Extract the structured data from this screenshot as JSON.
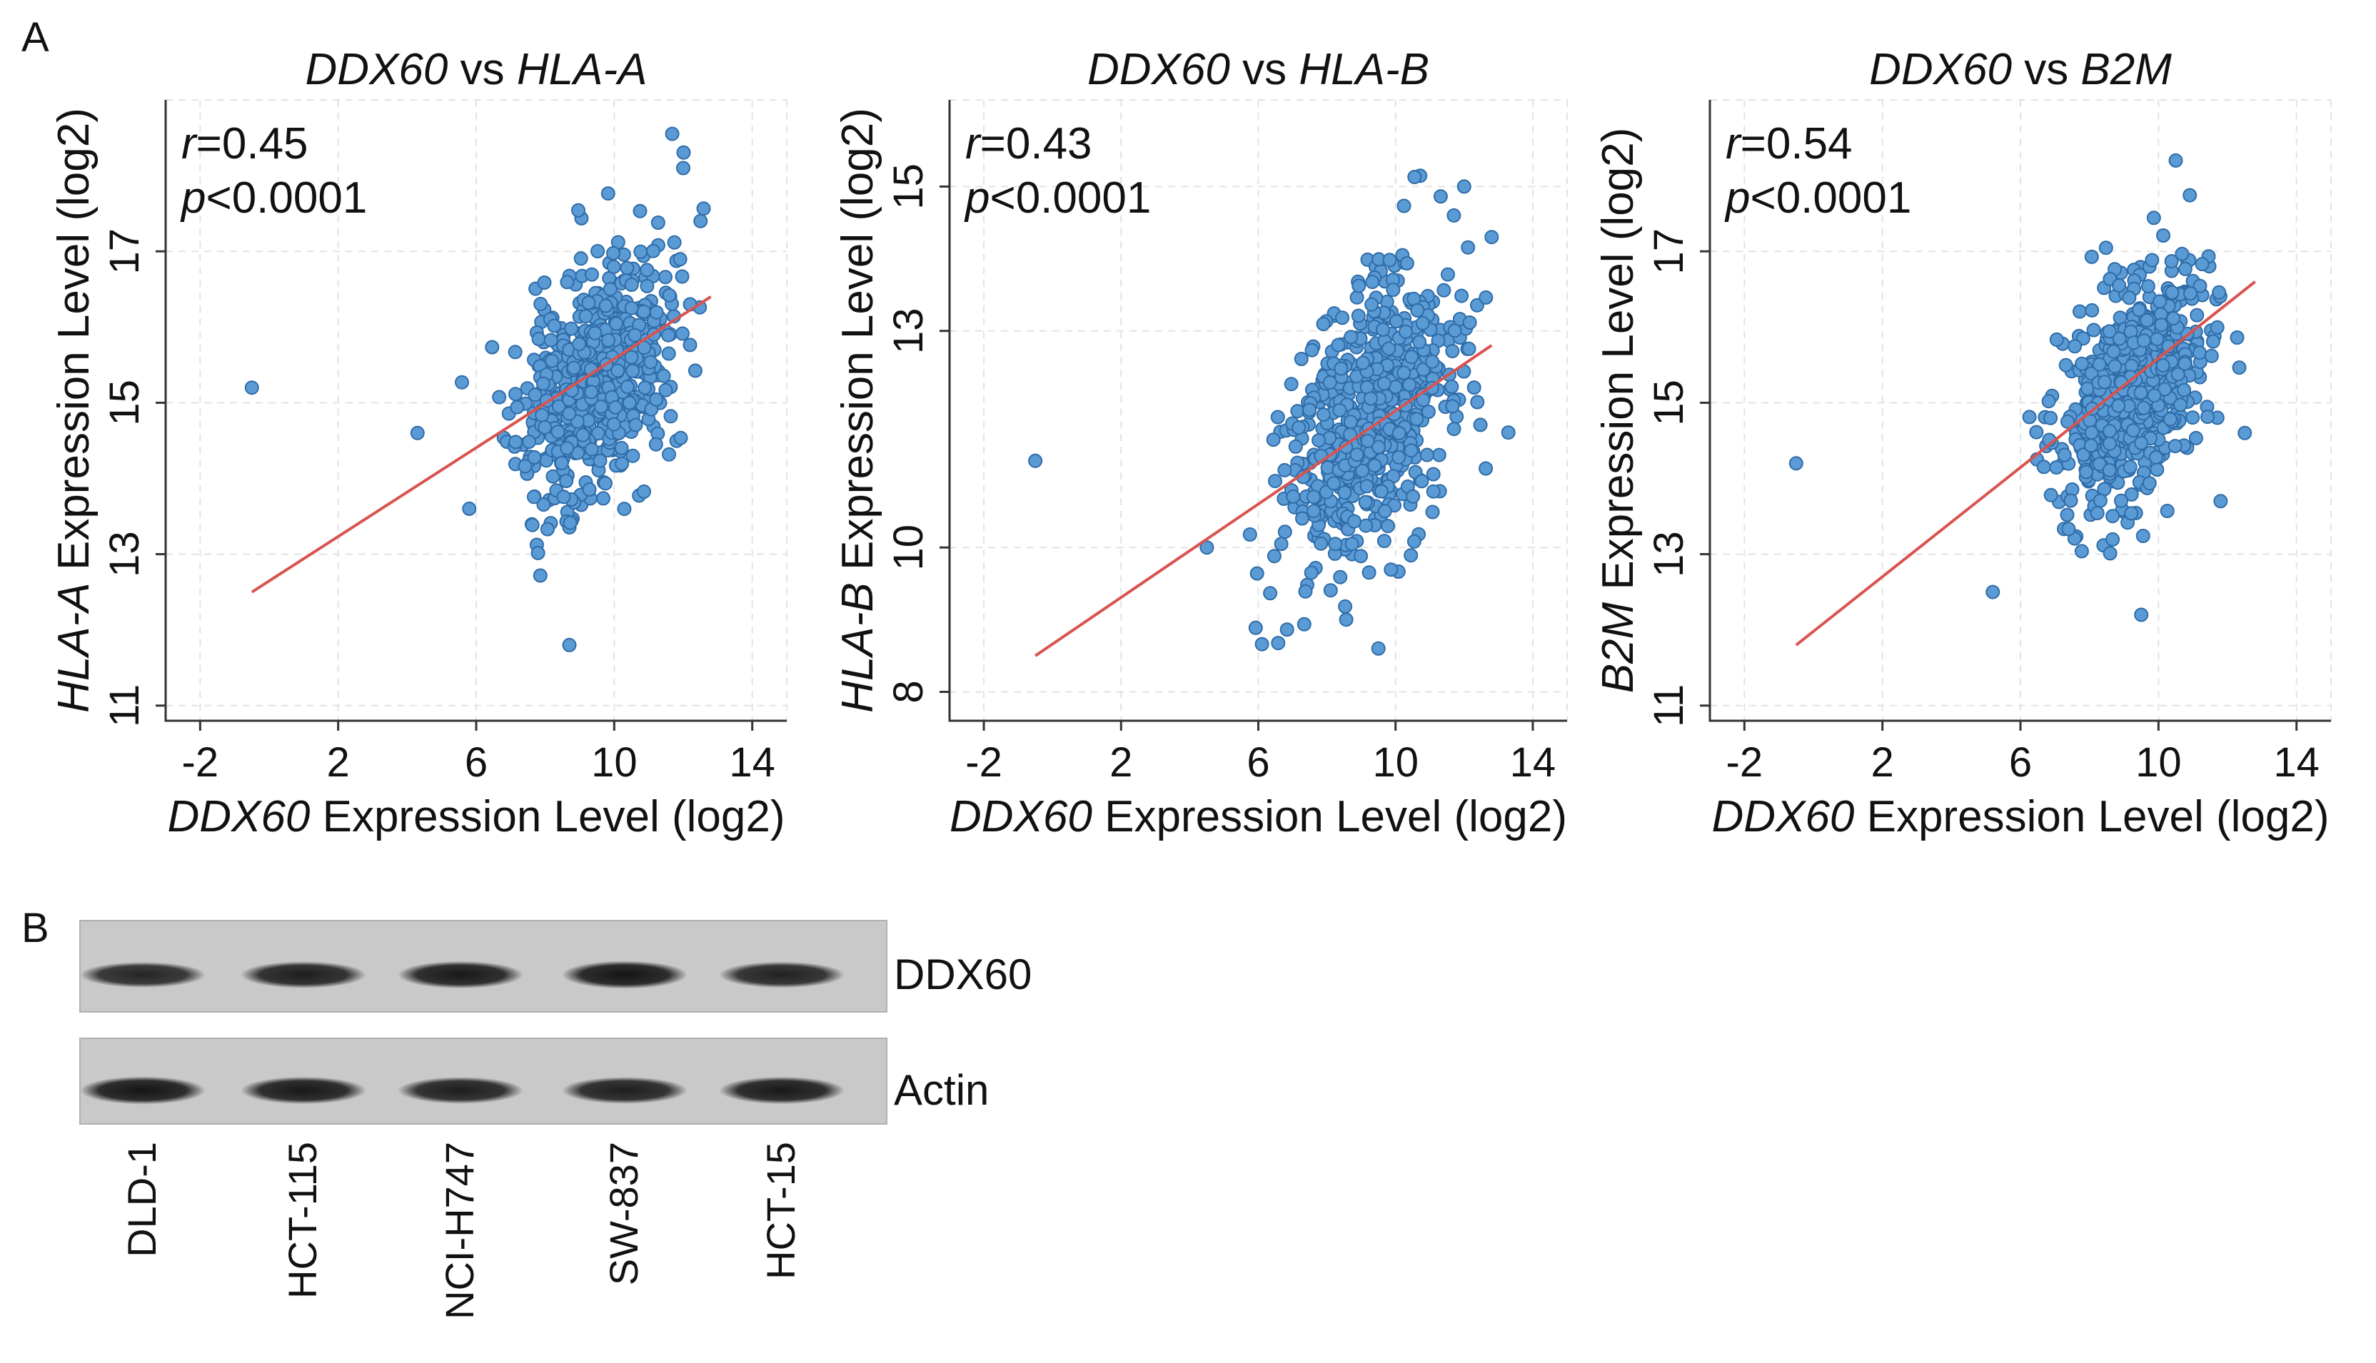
{
  "figure": {
    "panel_a_label": "A",
    "panel_b_label": "B"
  },
  "chart_data": [
    {
      "type": "scatter",
      "title_gene": "DDX60",
      "title_vs": " vs ",
      "title_target": "HLA-A",
      "xlabel_gene": "DDX60",
      "xlabel_rest": " Expression Level (log2)",
      "ylabel_gene": "HLA-A",
      "ylabel_rest": " Expression Level (log2)",
      "xlim": [
        -3,
        15
      ],
      "ylim": [
        10.8,
        19
      ],
      "xticks": [
        -2,
        2,
        6,
        10,
        14
      ],
      "yticks": [
        11,
        13,
        15,
        17
      ],
      "r_label": "r",
      "r_value": "=0.45",
      "p_label": "p",
      "p_value": "<0.0001",
      "fit_line": {
        "x": [
          -0.5,
          12.8
        ],
        "y": [
          12.5,
          16.4
        ]
      },
      "outliers": {
        "x": [
          -0.5,
          8.7,
          4.3,
          5.8,
          12.5,
          12.0
        ],
        "y": [
          15.2,
          11.8,
          14.6,
          13.6,
          17.4,
          18.1
        ]
      },
      "cluster": {
        "n": 600,
        "x_mean": 9.4,
        "x_sd": 1.1,
        "y_mean": 15.3,
        "y_sd": 0.75,
        "slope": 0.29,
        "seed": 11
      },
      "marker_color": "#5b9bd5",
      "line_color": "#d9534f"
    },
    {
      "type": "scatter",
      "title_gene": "DDX60",
      "title_vs": " vs ",
      "title_target": "HLA-B",
      "xlabel_gene": "DDX60",
      "xlabel_rest": " Expression Level (log2)",
      "ylabel_gene": "HLA-B",
      "ylabel_rest": " Expression Level (log2)",
      "xlim": [
        -3,
        15
      ],
      "ylim": [
        7.6,
        16.2
      ],
      "xticks": [
        -2,
        2,
        6,
        10,
        14
      ],
      "yticks": [
        8,
        10,
        13,
        15
      ],
      "r_label": "r",
      "r_value": "=0.43",
      "p_label": "p",
      "p_value": "<0.0001",
      "fit_line": {
        "x": [
          -0.5,
          12.8
        ],
        "y": [
          8.5,
          12.8
        ]
      },
      "outliers": {
        "x": [
          -0.5,
          9.5,
          4.5,
          12.0,
          12.8,
          11.7
        ],
        "y": [
          11.2,
          8.6,
          10.0,
          15.0,
          14.3,
          14.6
        ]
      },
      "cluster": {
        "n": 600,
        "x_mean": 9.2,
        "x_sd": 1.2,
        "y_mean": 11.7,
        "y_sd": 0.9,
        "slope": 0.33,
        "seed": 23
      },
      "marker_color": "#5b9bd5",
      "line_color": "#d9534f"
    },
    {
      "type": "scatter",
      "title_gene": "DDX60",
      "title_vs": " vs ",
      "title_target": "B2M",
      "xlabel_gene": "DDX60",
      "xlabel_rest": " Expression Level (log2)",
      "ylabel_gene": "B2M",
      "ylabel_rest": " Expression Level (log2)",
      "xlim": [
        -3,
        15
      ],
      "ylim": [
        10.8,
        19
      ],
      "xticks": [
        -2,
        2,
        6,
        10,
        14
      ],
      "yticks": [
        11,
        13,
        15,
        17
      ],
      "r_label": "r",
      "r_value": "=0.54",
      "p_label": "p",
      "p_value": "<0.0001",
      "fit_line": {
        "x": [
          -0.5,
          12.8
        ],
        "y": [
          11.8,
          16.6
        ]
      },
      "outliers": {
        "x": [
          -0.5,
          5.2,
          9.5,
          12.5,
          11.8,
          10.5
        ],
        "y": [
          14.2,
          12.5,
          12.2,
          14.6,
          13.7,
          18.2
        ]
      },
      "cluster": {
        "n": 600,
        "x_mean": 9.3,
        "x_sd": 1.05,
        "y_mean": 15.2,
        "y_sd": 0.7,
        "slope": 0.36,
        "seed": 37
      },
      "marker_color": "#5b9bd5",
      "line_color": "#d9534f"
    }
  ],
  "blot": {
    "rows": [
      {
        "label": "DDX60",
        "band_intensity": [
          0.75,
          0.85,
          0.9,
          0.95,
          0.8
        ]
      },
      {
        "label": "Actin",
        "band_intensity": [
          0.95,
          0.9,
          0.85,
          0.85,
          0.9
        ]
      }
    ],
    "lanes": [
      "DLD-1",
      "HCT-115",
      "NCI-H747",
      "SW-837",
      "HCT-15"
    ]
  }
}
